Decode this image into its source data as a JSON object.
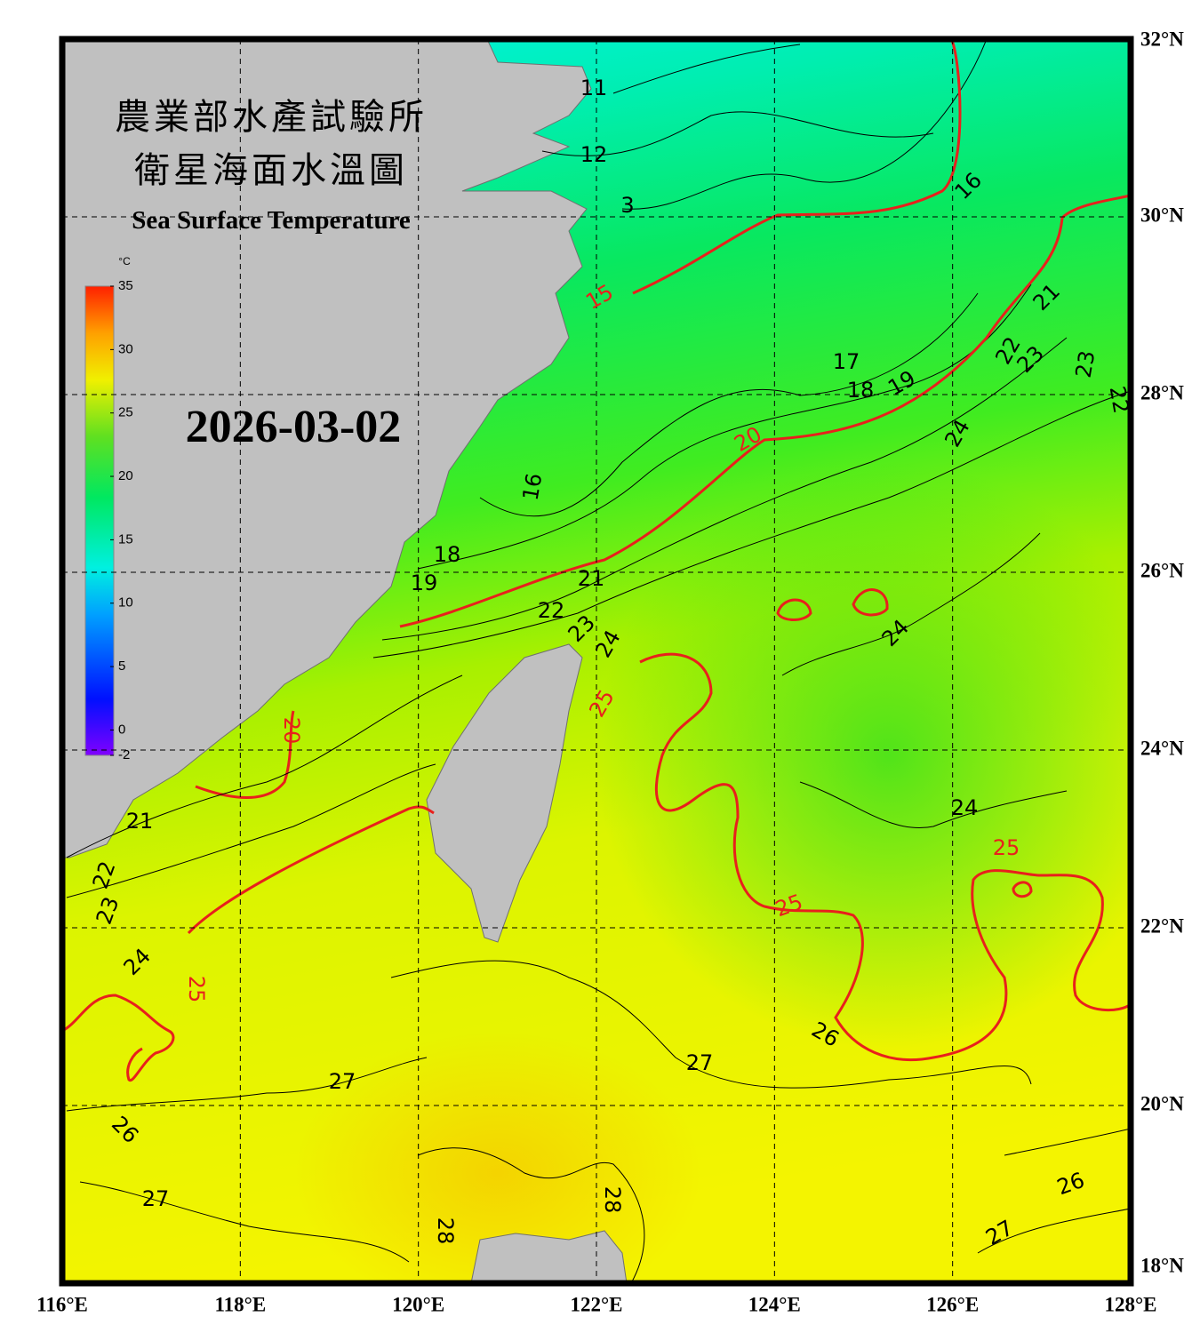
{
  "header": {
    "title_zh": "農業部水產試驗所",
    "subtitle_zh": "衛星海面水溫圖",
    "title_en": "Sea Surface Temperature"
  },
  "date": "2026-03-02",
  "colorbar": {
    "unit": "°C",
    "range": [
      -2,
      35
    ],
    "ticks": [
      35,
      30,
      25,
      20,
      15,
      10,
      5,
      0,
      -2
    ]
  },
  "map": {
    "lon_range": [
      116,
      128
    ],
    "lat_range": [
      18,
      32
    ],
    "lon_ticks": [
      {
        "value": 116,
        "label": "116°E"
      },
      {
        "value": 118,
        "label": "118°E"
      },
      {
        "value": 120,
        "label": "120°E"
      },
      {
        "value": 122,
        "label": "122°E"
      },
      {
        "value": 124,
        "label": "124°E"
      },
      {
        "value": 126,
        "label": "126°E"
      },
      {
        "value": 128,
        "label": "128°E"
      }
    ],
    "lat_ticks": [
      {
        "value": 32,
        "label": "32°N"
      },
      {
        "value": 30,
        "label": "30°N"
      },
      {
        "value": 28,
        "label": "28°N"
      },
      {
        "value": 26,
        "label": "26°N"
      },
      {
        "value": 24,
        "label": "24°N"
      },
      {
        "value": 22,
        "label": "22°N"
      },
      {
        "value": 20,
        "label": "20°N"
      },
      {
        "value": 18,
        "label": "18°N"
      }
    ]
  },
  "contour_labels": [
    11,
    12,
    3,
    16,
    17,
    18,
    19,
    21,
    22,
    23,
    23,
    22,
    24,
    16,
    18,
    19,
    21,
    22,
    23,
    24,
    24,
    24,
    21,
    22,
    23,
    24,
    26,
    27,
    27,
    26,
    27,
    28,
    28,
    26,
    27,
    15,
    20,
    20,
    25,
    25,
    25,
    25
  ]
}
